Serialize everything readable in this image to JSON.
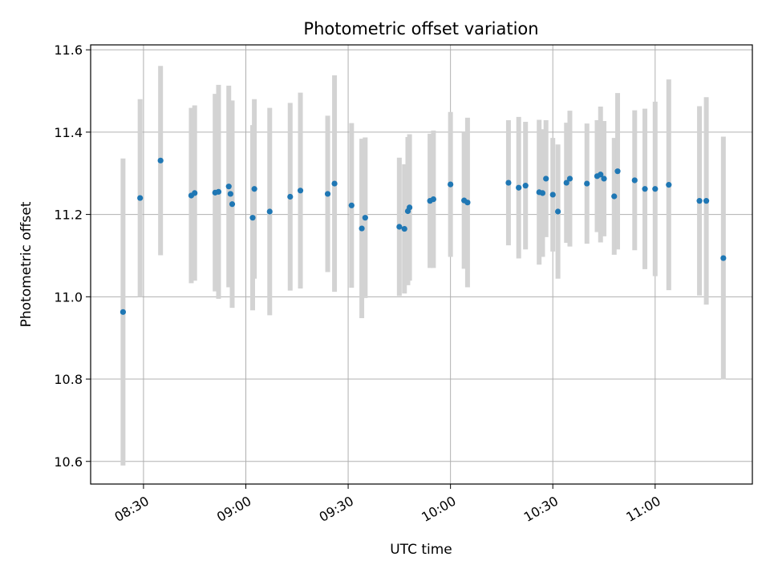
{
  "chart_data": {
    "type": "scatter",
    "title": "Photometric offset variation",
    "xlabel": "UTC time",
    "ylabel": "Photometric offset",
    "x_ticks": [
      "08:30",
      "09:00",
      "09:30",
      "10:00",
      "10:30",
      "11:00"
    ],
    "y_ticks": [
      "10.6",
      "10.8",
      "11.0",
      "11.2",
      "11.4",
      "11.6"
    ],
    "xlim": [
      "08:14:30",
      "11:28:30"
    ],
    "ylim": [
      10.545,
      11.612
    ],
    "grid": true,
    "colors": {
      "points": "#1f77b4",
      "errorbars": "#d3d3d3",
      "grid": "#b0b0b0"
    },
    "points": [
      {
        "x": "08:24",
        "y": 10.963,
        "err": 0.373
      },
      {
        "x": "08:29",
        "y": 11.24,
        "err": 0.24
      },
      {
        "x": "08:35",
        "y": 11.331,
        "err": 0.23
      },
      {
        "x": "08:44",
        "y": 11.246,
        "err": 0.213
      },
      {
        "x": "08:45",
        "y": 11.252,
        "err": 0.213
      },
      {
        "x": "08:51",
        "y": 11.253,
        "err": 0.24
      },
      {
        "x": "08:52",
        "y": 11.255,
        "err": 0.26
      },
      {
        "x": "08:55",
        "y": 11.268,
        "err": 0.245
      },
      {
        "x": "08:55:30",
        "y": 11.25,
        "err": 0.218
      },
      {
        "x": "08:56",
        "y": 11.225,
        "err": 0.252
      },
      {
        "x": "09:02",
        "y": 11.192,
        "err": 0.225
      },
      {
        "x": "09:02:30",
        "y": 11.262,
        "err": 0.218
      },
      {
        "x": "09:07",
        "y": 11.207,
        "err": 0.252
      },
      {
        "x": "09:13",
        "y": 11.243,
        "err": 0.228
      },
      {
        "x": "09:16",
        "y": 11.258,
        "err": 0.238
      },
      {
        "x": "09:24",
        "y": 11.25,
        "err": 0.19
      },
      {
        "x": "09:26",
        "y": 11.275,
        "err": 0.263
      },
      {
        "x": "09:31",
        "y": 11.222,
        "err": 0.2
      },
      {
        "x": "09:34",
        "y": 11.166,
        "err": 0.218
      },
      {
        "x": "09:35",
        "y": 11.192,
        "err": 0.195
      },
      {
        "x": "09:45",
        "y": 11.17,
        "err": 0.168
      },
      {
        "x": "09:46:30",
        "y": 11.165,
        "err": 0.157
      },
      {
        "x": "09:47:30",
        "y": 11.208,
        "err": 0.18
      },
      {
        "x": "09:48",
        "y": 11.217,
        "err": 0.178
      },
      {
        "x": "09:54",
        "y": 11.233,
        "err": 0.163
      },
      {
        "x": "09:55",
        "y": 11.237,
        "err": 0.167
      },
      {
        "x": "10:00",
        "y": 11.273,
        "err": 0.176
      },
      {
        "x": "10:04",
        "y": 11.234,
        "err": 0.166
      },
      {
        "x": "10:05",
        "y": 11.229,
        "err": 0.206
      },
      {
        "x": "10:17",
        "y": 11.277,
        "err": 0.152
      },
      {
        "x": "10:20",
        "y": 11.265,
        "err": 0.172
      },
      {
        "x": "10:22",
        "y": 11.27,
        "err": 0.155
      },
      {
        "x": "10:26",
        "y": 11.254,
        "err": 0.176
      },
      {
        "x": "10:27",
        "y": 11.252,
        "err": 0.155
      },
      {
        "x": "10:28",
        "y": 11.287,
        "err": 0.142
      },
      {
        "x": "10:30",
        "y": 11.248,
        "err": 0.138
      },
      {
        "x": "10:31:30",
        "y": 11.207,
        "err": 0.163
      },
      {
        "x": "10:34",
        "y": 11.277,
        "err": 0.146
      },
      {
        "x": "10:35",
        "y": 11.287,
        "err": 0.165
      },
      {
        "x": "10:40",
        "y": 11.275,
        "err": 0.146
      },
      {
        "x": "10:43",
        "y": 11.293,
        "err": 0.136
      },
      {
        "x": "10:44",
        "y": 11.297,
        "err": 0.165
      },
      {
        "x": "10:45",
        "y": 11.287,
        "err": 0.14
      },
      {
        "x": "10:48",
        "y": 11.244,
        "err": 0.142
      },
      {
        "x": "10:49",
        "y": 11.305,
        "err": 0.19
      },
      {
        "x": "10:54",
        "y": 11.283,
        "err": 0.17
      },
      {
        "x": "10:57",
        "y": 11.262,
        "err": 0.195
      },
      {
        "x": "11:00",
        "y": 11.262,
        "err": 0.212
      },
      {
        "x": "11:04",
        "y": 11.272,
        "err": 0.256
      },
      {
        "x": "11:13",
        "y": 11.233,
        "err": 0.23
      },
      {
        "x": "11:15",
        "y": 11.233,
        "err": 0.252
      },
      {
        "x": "11:20",
        "y": 11.094,
        "err": 0.295
      }
    ]
  }
}
